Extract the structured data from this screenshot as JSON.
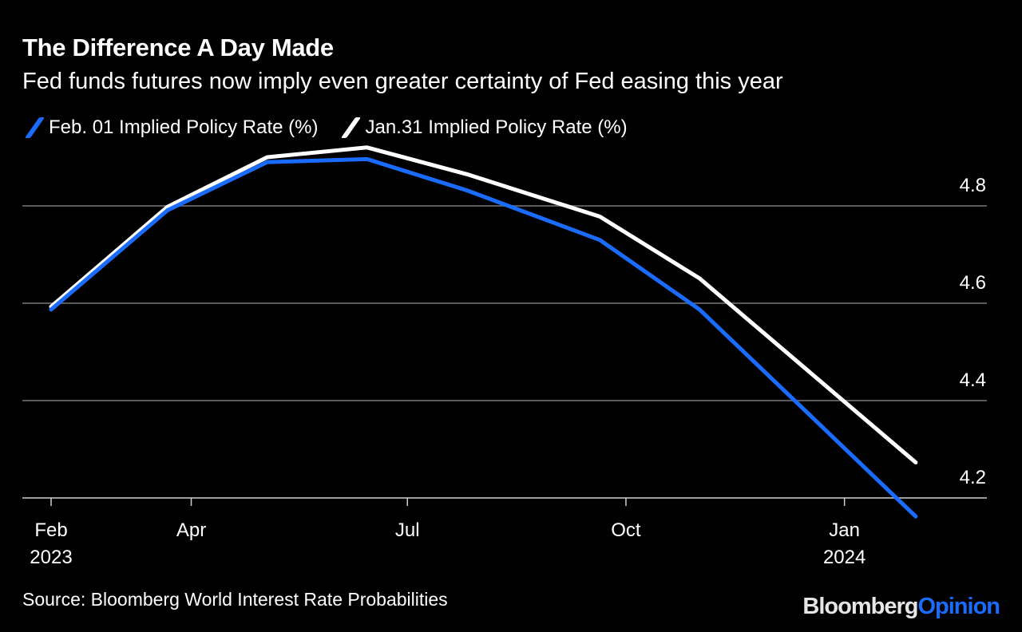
{
  "title": "The Difference A Day Made",
  "subtitle": "Fed funds futures now imply even greater certainty of Fed easing this year",
  "source": "Source: Bloomberg World Interest Rate Probabilities",
  "logo": {
    "brand": "Bloomberg",
    "section": "Opinion"
  },
  "colors": {
    "background": "#000000",
    "feb01": "#1a6cff",
    "jan31": "#ffffff",
    "grid": "#5a5a5a",
    "brand_text": "#e6e6e6"
  },
  "chart_data": {
    "type": "line",
    "title": "The Difference A Day Made",
    "subtitle": "Fed funds futures now imply even greater certainty of Fed easing this year",
    "xlabel": "",
    "ylabel": "",
    "ylim": [
      4.2,
      4.95
    ],
    "xlim": [
      "2023-01-25",
      "2024-02-05"
    ],
    "grid": "horizontal",
    "legend_position": "top-left",
    "y_ticks": [
      "4.8",
      "4.6",
      "4.4",
      "4.2"
    ],
    "y_tick_values": [
      4.8,
      4.6,
      4.4,
      4.2
    ],
    "x_ticks": [
      {
        "date": "2023-02-01",
        "label": "Feb",
        "year": "2023"
      },
      {
        "date": "2023-04-01",
        "label": "Apr",
        "year": ""
      },
      {
        "date": "2023-07-01",
        "label": "Jul",
        "year": ""
      },
      {
        "date": "2023-10-01",
        "label": "Oct",
        "year": ""
      },
      {
        "date": "2024-01-01",
        "label": "Jan",
        "year": "2024"
      }
    ],
    "x": [
      "2023-02-01",
      "2023-03-22",
      "2023-05-03",
      "2023-06-14",
      "2023-07-26",
      "2023-09-20",
      "2023-11-01",
      "2024-01-31"
    ],
    "series": [
      {
        "name": "Feb. 01 Implied Policy Rate (%)",
        "color": "#1a6cff",
        "values": [
          4.587,
          4.791,
          4.89,
          4.896,
          4.832,
          4.73,
          4.587,
          4.162
        ]
      },
      {
        "name": "Jan.31 Implied Policy Rate (%)",
        "color": "#ffffff",
        "values": [
          4.593,
          4.798,
          4.9,
          4.92,
          4.865,
          4.778,
          4.651,
          4.273
        ]
      }
    ]
  }
}
